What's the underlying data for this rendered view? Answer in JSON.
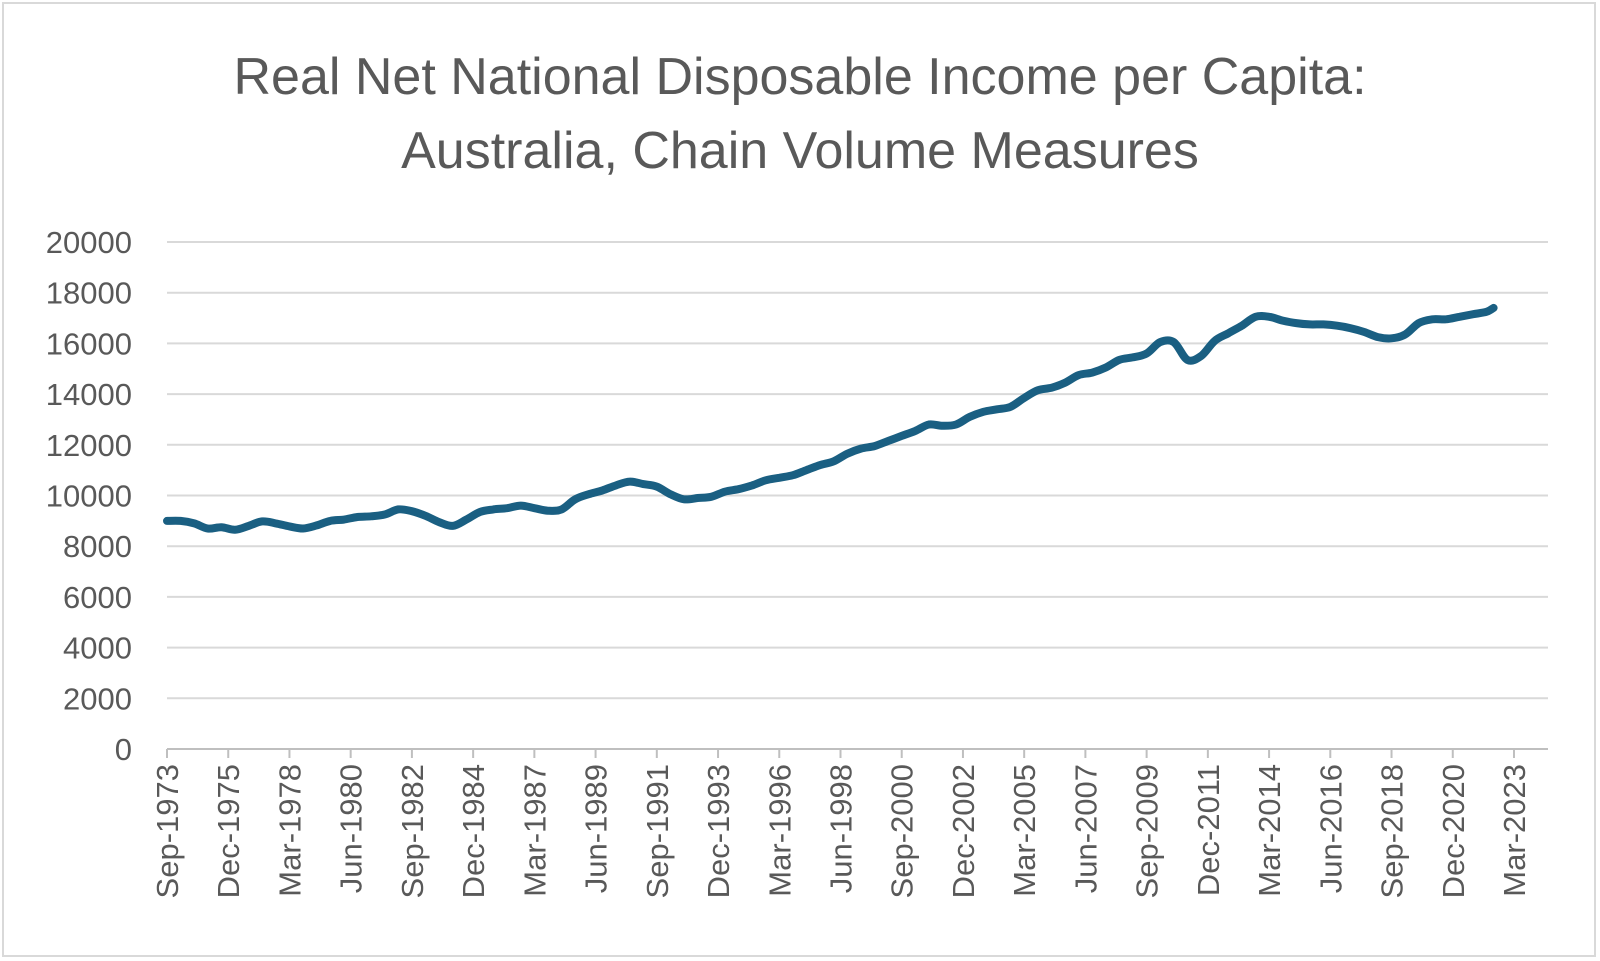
{
  "chart_data": {
    "type": "line",
    "title_lines": [
      "Real Net National Disposable Income per Capita:",
      "Australia, Chain Volume Measures"
    ],
    "xlabel": "",
    "ylabel": "",
    "ylim": [
      0,
      20000
    ],
    "y_ticks": [
      0,
      2000,
      4000,
      6000,
      8000,
      10000,
      12000,
      14000,
      16000,
      18000,
      20000
    ],
    "x_ticks": [
      "Sep-1973",
      "Dec-1975",
      "Mar-1978",
      "Jun-1980",
      "Sep-1982",
      "Dec-1984",
      "Mar-1987",
      "Jun-1989",
      "Sep-1991",
      "Dec-1993",
      "Mar-1996",
      "Jun-1998",
      "Sep-2000",
      "Dec-2002",
      "Mar-2005",
      "Jun-2007",
      "Sep-2009",
      "Dec-2011",
      "Mar-2014",
      "Jun-2016",
      "Sep-2018",
      "Dec-2020",
      "Mar-2023"
    ],
    "xlim": [
      "Sep-1973",
      "Jun-2024"
    ],
    "grid": true,
    "line_color": "#1a5f82",
    "series": [
      {
        "points": [
          [
            "Sep-1973",
            9000
          ],
          [
            "Mar-1974",
            9000
          ],
          [
            "Sep-1974",
            8900
          ],
          [
            "Mar-1975",
            8700
          ],
          [
            "Sep-1975",
            8750
          ],
          [
            "Mar-1976",
            8650
          ],
          [
            "Sep-1976",
            8800
          ],
          [
            "Mar-1977",
            8980
          ],
          [
            "Sep-1977",
            8900
          ],
          [
            "Mar-1978",
            8780
          ],
          [
            "Sep-1978",
            8700
          ],
          [
            "Mar-1979",
            8820
          ],
          [
            "Sep-1979",
            9000
          ],
          [
            "Mar-1980",
            9050
          ],
          [
            "Sep-1980",
            9150
          ],
          [
            "Mar-1981",
            9180
          ],
          [
            "Sep-1981",
            9250
          ],
          [
            "Mar-1982",
            9450
          ],
          [
            "Sep-1982",
            9380
          ],
          [
            "Mar-1983",
            9200
          ],
          [
            "Sep-1983",
            8950
          ],
          [
            "Mar-1984",
            8800
          ],
          [
            "Sep-1984",
            9050
          ],
          [
            "Mar-1985",
            9350
          ],
          [
            "Sep-1985",
            9450
          ],
          [
            "Mar-1986",
            9500
          ],
          [
            "Sep-1986",
            9600
          ],
          [
            "Mar-1987",
            9500
          ],
          [
            "Sep-1987",
            9400
          ],
          [
            "Mar-1988",
            9450
          ],
          [
            "Sep-1988",
            9850
          ],
          [
            "Mar-1989",
            10050
          ],
          [
            "Sep-1989",
            10200
          ],
          [
            "Mar-1990",
            10400
          ],
          [
            "Sep-1990",
            10550
          ],
          [
            "Mar-1991",
            10450
          ],
          [
            "Sep-1991",
            10350
          ],
          [
            "Mar-1992",
            10050
          ],
          [
            "Sep-1992",
            9850
          ],
          [
            "Mar-1993",
            9900
          ],
          [
            "Sep-1993",
            9950
          ],
          [
            "Mar-1994",
            10150
          ],
          [
            "Sep-1994",
            10250
          ],
          [
            "Mar-1995",
            10400
          ],
          [
            "Sep-1995",
            10600
          ],
          [
            "Mar-1996",
            10700
          ],
          [
            "Sep-1996",
            10800
          ],
          [
            "Mar-1997",
            11000
          ],
          [
            "Sep-1997",
            11200
          ],
          [
            "Mar-1998",
            11350
          ],
          [
            "Sep-1998",
            11650
          ],
          [
            "Mar-1999",
            11850
          ],
          [
            "Sep-1999",
            11950
          ],
          [
            "Mar-2000",
            12150
          ],
          [
            "Sep-2000",
            12350
          ],
          [
            "Mar-2001",
            12550
          ],
          [
            "Sep-2001",
            12800
          ],
          [
            "Mar-2002",
            12750
          ],
          [
            "Sep-2002",
            12800
          ],
          [
            "Mar-2003",
            13100
          ],
          [
            "Sep-2003",
            13300
          ],
          [
            "Mar-2004",
            13400
          ],
          [
            "Sep-2004",
            13500
          ],
          [
            "Mar-2005",
            13850
          ],
          [
            "Sep-2005",
            14150
          ],
          [
            "Mar-2006",
            14250
          ],
          [
            "Sep-2006",
            14450
          ],
          [
            "Mar-2007",
            14750
          ],
          [
            "Sep-2007",
            14850
          ],
          [
            "Mar-2008",
            15050
          ],
          [
            "Sep-2008",
            15350
          ],
          [
            "Mar-2009",
            15450
          ],
          [
            "Sep-2009",
            15600
          ],
          [
            "Mar-2010",
            16050
          ],
          [
            "Sep-2010",
            16050
          ],
          [
            "Mar-2011",
            15350
          ],
          [
            "Sep-2011",
            15500
          ],
          [
            "Mar-2012",
            16100
          ],
          [
            "Sep-2012",
            16400
          ],
          [
            "Mar-2013",
            16700
          ],
          [
            "Sep-2013",
            17050
          ],
          [
            "Mar-2014",
            17050
          ],
          [
            "Sep-2014",
            16900
          ],
          [
            "Mar-2015",
            16800
          ],
          [
            "Sep-2015",
            16750
          ],
          [
            "Mar-2016",
            16750
          ],
          [
            "Sep-2016",
            16700
          ],
          [
            "Mar-2017",
            16600
          ],
          [
            "Sep-2017",
            16450
          ],
          [
            "Mar-2018",
            16250
          ],
          [
            "Sep-2018",
            16200
          ],
          [
            "Mar-2019",
            16350
          ],
          [
            "Sep-2019",
            16800
          ],
          [
            "Mar-2020",
            16950
          ],
          [
            "Sep-2020",
            16950
          ],
          [
            "Mar-2021",
            17050
          ],
          [
            "Sep-2021",
            17150
          ],
          [
            "Mar-2022",
            17250
          ],
          [
            "Jun-2022",
            17400
          ]
        ]
      }
    ]
  }
}
